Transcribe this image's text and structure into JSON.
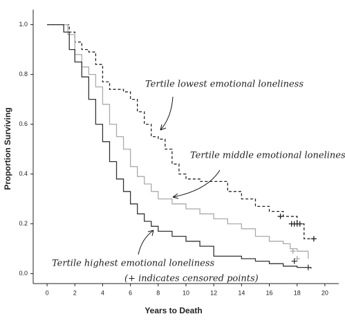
{
  "chart_data": {
    "type": "line",
    "step": true,
    "xlabel": "Years to Death",
    "ylabel": "Proportion Surviving",
    "note": "(+ indicates censored points)",
    "xlim": [
      -1,
      21
    ],
    "ylim": [
      -0.04,
      1.06
    ],
    "xticks": [
      0,
      2,
      4,
      6,
      8,
      10,
      12,
      14,
      16,
      18,
      20
    ],
    "yticks": [
      {
        "value": 0,
        "label": "0.0"
      },
      {
        "value": 0.2,
        "label": "0.2"
      },
      {
        "value": 0.4,
        "label": "0.4"
      },
      {
        "value": 0.6,
        "label": "0.6"
      },
      {
        "value": 0.8,
        "label": "0.8"
      },
      {
        "value": 1,
        "label": "1.0"
      }
    ],
    "series": [
      {
        "name": "Tertile lowest emotional loneliness",
        "color": "#222222",
        "line_style": "dashed",
        "x": [
          0,
          1.6,
          2.0,
          2.5,
          3.0,
          3.5,
          4.0,
          4.5,
          5.5,
          6.0,
          6.5,
          7.0,
          7.5,
          8.0,
          8.5,
          9.0,
          9.5,
          10.0,
          11.0,
          13.0,
          14.0,
          15.0,
          16.0,
          17.0,
          18.0,
          18.5,
          19.3
        ],
        "values": [
          1.0,
          0.97,
          0.93,
          0.9,
          0.89,
          0.84,
          0.77,
          0.74,
          0.73,
          0.7,
          0.65,
          0.6,
          0.55,
          0.54,
          0.5,
          0.44,
          0.4,
          0.38,
          0.37,
          0.33,
          0.3,
          0.27,
          0.25,
          0.23,
          0.2,
          0.14,
          0.14
        ],
        "censored": {
          "x": [
            16.8,
            17.6,
            17.8,
            18.0,
            18.2,
            19.2
          ],
          "values": [
            0.23,
            0.2,
            0.2,
            0.2,
            0.2,
            0.14
          ]
        }
      },
      {
        "name": "Tertile middle emotional loneliness",
        "color": "#aaaaaa",
        "line_style": "solid",
        "x": [
          0,
          1.5,
          2.0,
          2.5,
          3.0,
          3.5,
          4.0,
          4.5,
          5.0,
          5.5,
          6.0,
          6.5,
          7.0,
          7.5,
          8.0,
          9.0,
          10.0,
          11.0,
          12.0,
          13.0,
          14.0,
          15.0,
          16.0,
          17.0,
          17.5,
          18.0,
          18.8
        ],
        "values": [
          1.0,
          0.96,
          0.88,
          0.83,
          0.8,
          0.75,
          0.68,
          0.6,
          0.55,
          0.5,
          0.43,
          0.39,
          0.36,
          0.33,
          0.3,
          0.28,
          0.26,
          0.24,
          0.22,
          0.2,
          0.18,
          0.15,
          0.13,
          0.12,
          0.1,
          0.09,
          0.06
        ],
        "censored": {
          "x": [
            17.7,
            18.0
          ],
          "values": [
            0.09,
            0.06
          ]
        }
      },
      {
        "name": "Tertile highest emotional loneliness",
        "color": "#333333",
        "line_style": "solid",
        "x": [
          0,
          1.2,
          1.6,
          2.0,
          2.5,
          3.0,
          3.5,
          4.0,
          4.5,
          5.0,
          5.5,
          6.0,
          6.5,
          7.0,
          7.5,
          8.0,
          9.0,
          10.0,
          11.0,
          12.0,
          14.0,
          15.0,
          16.0,
          17.0,
          18.0,
          19.0
        ],
        "values": [
          1.0,
          0.97,
          0.9,
          0.85,
          0.79,
          0.7,
          0.6,
          0.53,
          0.45,
          0.38,
          0.33,
          0.28,
          0.24,
          0.21,
          0.19,
          0.17,
          0.15,
          0.13,
          0.11,
          0.07,
          0.06,
          0.05,
          0.04,
          0.03,
          0.025,
          0.02
        ],
        "censored": {
          "x": [
            17.8,
            18.8
          ],
          "values": [
            0.05,
            0.025
          ]
        }
      }
    ]
  }
}
